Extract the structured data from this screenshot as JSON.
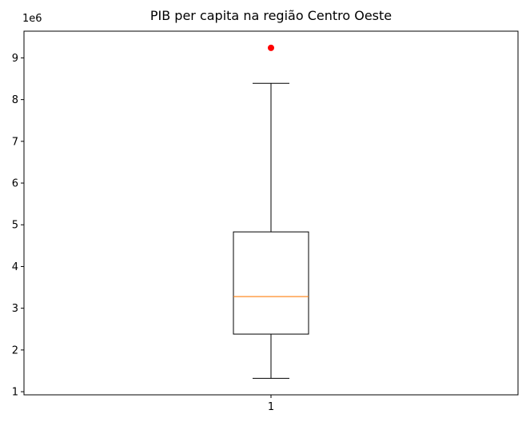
{
  "chart_data": {
    "type": "box",
    "title": "PIB per capita na região Centro Oeste",
    "xlabel": "",
    "ylabel": "",
    "y_offset_label": "1e6",
    "categories": [
      "1"
    ],
    "boxes": [
      {
        "category": "1",
        "whisker_low": 1.32,
        "q1": 2.38,
        "median": 3.28,
        "q3": 4.83,
        "whisker_high": 8.39,
        "outliers": [
          9.24
        ]
      }
    ],
    "y_ticks": [
      1,
      2,
      3,
      4,
      5,
      6,
      7,
      8,
      9
    ],
    "y_tick_labels": [
      "1",
      "2",
      "3",
      "4",
      "5",
      "6",
      "7",
      "8",
      "9"
    ],
    "ylim": [
      0.925,
      9.64
    ],
    "grid": false,
    "colors": {
      "box": "#000000",
      "median": "#ff7f0e",
      "outlier": "#ff0000"
    }
  }
}
